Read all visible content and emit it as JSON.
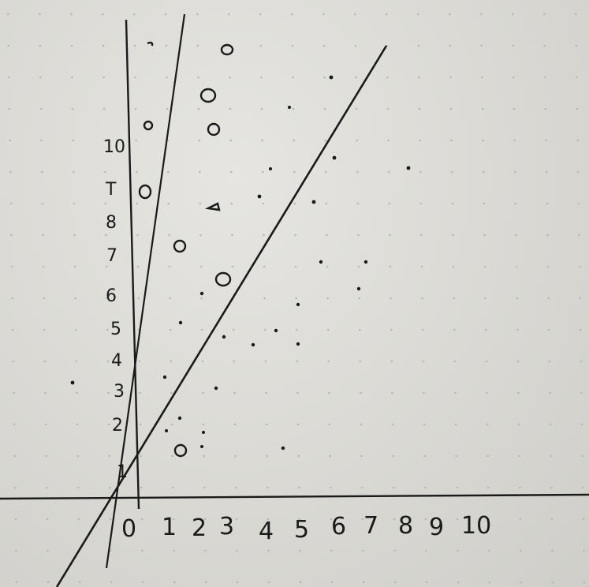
{
  "sketch": {
    "x_axis_labels": [
      "0",
      "1",
      "2",
      "3",
      "4",
      "5",
      "6",
      "7",
      "8",
      "9",
      "10"
    ],
    "y_axis_labels": [
      "1",
      "2",
      "3",
      "4",
      "5",
      "6",
      "7",
      "8",
      "T",
      "10"
    ],
    "ink_color": "#1a1a1a",
    "paper_dot_color": "#b9b8b3"
  }
}
